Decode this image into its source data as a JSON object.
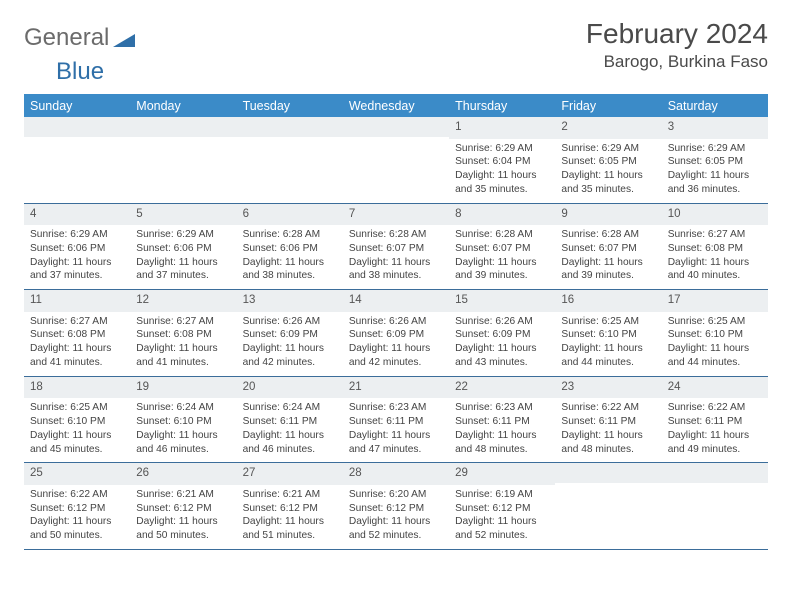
{
  "brand": {
    "part1": "General",
    "part2": "Blue"
  },
  "title": "February 2024",
  "location": "Barogo, Burkina Faso",
  "colors": {
    "header_bg": "#3b8bc8",
    "header_text": "#ffffff",
    "rule": "#3b6d9a",
    "daynum_bg": "#eceff1",
    "text": "#444444",
    "logo_gray": "#6b6b6b",
    "logo_blue": "#2f6fa8"
  },
  "day_names": [
    "Sunday",
    "Monday",
    "Tuesday",
    "Wednesday",
    "Thursday",
    "Friday",
    "Saturday"
  ],
  "weeks": [
    [
      {
        "n": "",
        "sr": "",
        "ss": "",
        "dl": ""
      },
      {
        "n": "",
        "sr": "",
        "ss": "",
        "dl": ""
      },
      {
        "n": "",
        "sr": "",
        "ss": "",
        "dl": ""
      },
      {
        "n": "",
        "sr": "",
        "ss": "",
        "dl": ""
      },
      {
        "n": "1",
        "sr": "Sunrise: 6:29 AM",
        "ss": "Sunset: 6:04 PM",
        "dl": "Daylight: 11 hours and 35 minutes."
      },
      {
        "n": "2",
        "sr": "Sunrise: 6:29 AM",
        "ss": "Sunset: 6:05 PM",
        "dl": "Daylight: 11 hours and 35 minutes."
      },
      {
        "n": "3",
        "sr": "Sunrise: 6:29 AM",
        "ss": "Sunset: 6:05 PM",
        "dl": "Daylight: 11 hours and 36 minutes."
      }
    ],
    [
      {
        "n": "4",
        "sr": "Sunrise: 6:29 AM",
        "ss": "Sunset: 6:06 PM",
        "dl": "Daylight: 11 hours and 37 minutes."
      },
      {
        "n": "5",
        "sr": "Sunrise: 6:29 AM",
        "ss": "Sunset: 6:06 PM",
        "dl": "Daylight: 11 hours and 37 minutes."
      },
      {
        "n": "6",
        "sr": "Sunrise: 6:28 AM",
        "ss": "Sunset: 6:06 PM",
        "dl": "Daylight: 11 hours and 38 minutes."
      },
      {
        "n": "7",
        "sr": "Sunrise: 6:28 AM",
        "ss": "Sunset: 6:07 PM",
        "dl": "Daylight: 11 hours and 38 minutes."
      },
      {
        "n": "8",
        "sr": "Sunrise: 6:28 AM",
        "ss": "Sunset: 6:07 PM",
        "dl": "Daylight: 11 hours and 39 minutes."
      },
      {
        "n": "9",
        "sr": "Sunrise: 6:28 AM",
        "ss": "Sunset: 6:07 PM",
        "dl": "Daylight: 11 hours and 39 minutes."
      },
      {
        "n": "10",
        "sr": "Sunrise: 6:27 AM",
        "ss": "Sunset: 6:08 PM",
        "dl": "Daylight: 11 hours and 40 minutes."
      }
    ],
    [
      {
        "n": "11",
        "sr": "Sunrise: 6:27 AM",
        "ss": "Sunset: 6:08 PM",
        "dl": "Daylight: 11 hours and 41 minutes."
      },
      {
        "n": "12",
        "sr": "Sunrise: 6:27 AM",
        "ss": "Sunset: 6:08 PM",
        "dl": "Daylight: 11 hours and 41 minutes."
      },
      {
        "n": "13",
        "sr": "Sunrise: 6:26 AM",
        "ss": "Sunset: 6:09 PM",
        "dl": "Daylight: 11 hours and 42 minutes."
      },
      {
        "n": "14",
        "sr": "Sunrise: 6:26 AM",
        "ss": "Sunset: 6:09 PM",
        "dl": "Daylight: 11 hours and 42 minutes."
      },
      {
        "n": "15",
        "sr": "Sunrise: 6:26 AM",
        "ss": "Sunset: 6:09 PM",
        "dl": "Daylight: 11 hours and 43 minutes."
      },
      {
        "n": "16",
        "sr": "Sunrise: 6:25 AM",
        "ss": "Sunset: 6:10 PM",
        "dl": "Daylight: 11 hours and 44 minutes."
      },
      {
        "n": "17",
        "sr": "Sunrise: 6:25 AM",
        "ss": "Sunset: 6:10 PM",
        "dl": "Daylight: 11 hours and 44 minutes."
      }
    ],
    [
      {
        "n": "18",
        "sr": "Sunrise: 6:25 AM",
        "ss": "Sunset: 6:10 PM",
        "dl": "Daylight: 11 hours and 45 minutes."
      },
      {
        "n": "19",
        "sr": "Sunrise: 6:24 AM",
        "ss": "Sunset: 6:10 PM",
        "dl": "Daylight: 11 hours and 46 minutes."
      },
      {
        "n": "20",
        "sr": "Sunrise: 6:24 AM",
        "ss": "Sunset: 6:11 PM",
        "dl": "Daylight: 11 hours and 46 minutes."
      },
      {
        "n": "21",
        "sr": "Sunrise: 6:23 AM",
        "ss": "Sunset: 6:11 PM",
        "dl": "Daylight: 11 hours and 47 minutes."
      },
      {
        "n": "22",
        "sr": "Sunrise: 6:23 AM",
        "ss": "Sunset: 6:11 PM",
        "dl": "Daylight: 11 hours and 48 minutes."
      },
      {
        "n": "23",
        "sr": "Sunrise: 6:22 AM",
        "ss": "Sunset: 6:11 PM",
        "dl": "Daylight: 11 hours and 48 minutes."
      },
      {
        "n": "24",
        "sr": "Sunrise: 6:22 AM",
        "ss": "Sunset: 6:11 PM",
        "dl": "Daylight: 11 hours and 49 minutes."
      }
    ],
    [
      {
        "n": "25",
        "sr": "Sunrise: 6:22 AM",
        "ss": "Sunset: 6:12 PM",
        "dl": "Daylight: 11 hours and 50 minutes."
      },
      {
        "n": "26",
        "sr": "Sunrise: 6:21 AM",
        "ss": "Sunset: 6:12 PM",
        "dl": "Daylight: 11 hours and 50 minutes."
      },
      {
        "n": "27",
        "sr": "Sunrise: 6:21 AM",
        "ss": "Sunset: 6:12 PM",
        "dl": "Daylight: 11 hours and 51 minutes."
      },
      {
        "n": "28",
        "sr": "Sunrise: 6:20 AM",
        "ss": "Sunset: 6:12 PM",
        "dl": "Daylight: 11 hours and 52 minutes."
      },
      {
        "n": "29",
        "sr": "Sunrise: 6:19 AM",
        "ss": "Sunset: 6:12 PM",
        "dl": "Daylight: 11 hours and 52 minutes."
      },
      {
        "n": "",
        "sr": "",
        "ss": "",
        "dl": ""
      },
      {
        "n": "",
        "sr": "",
        "ss": "",
        "dl": ""
      }
    ]
  ]
}
